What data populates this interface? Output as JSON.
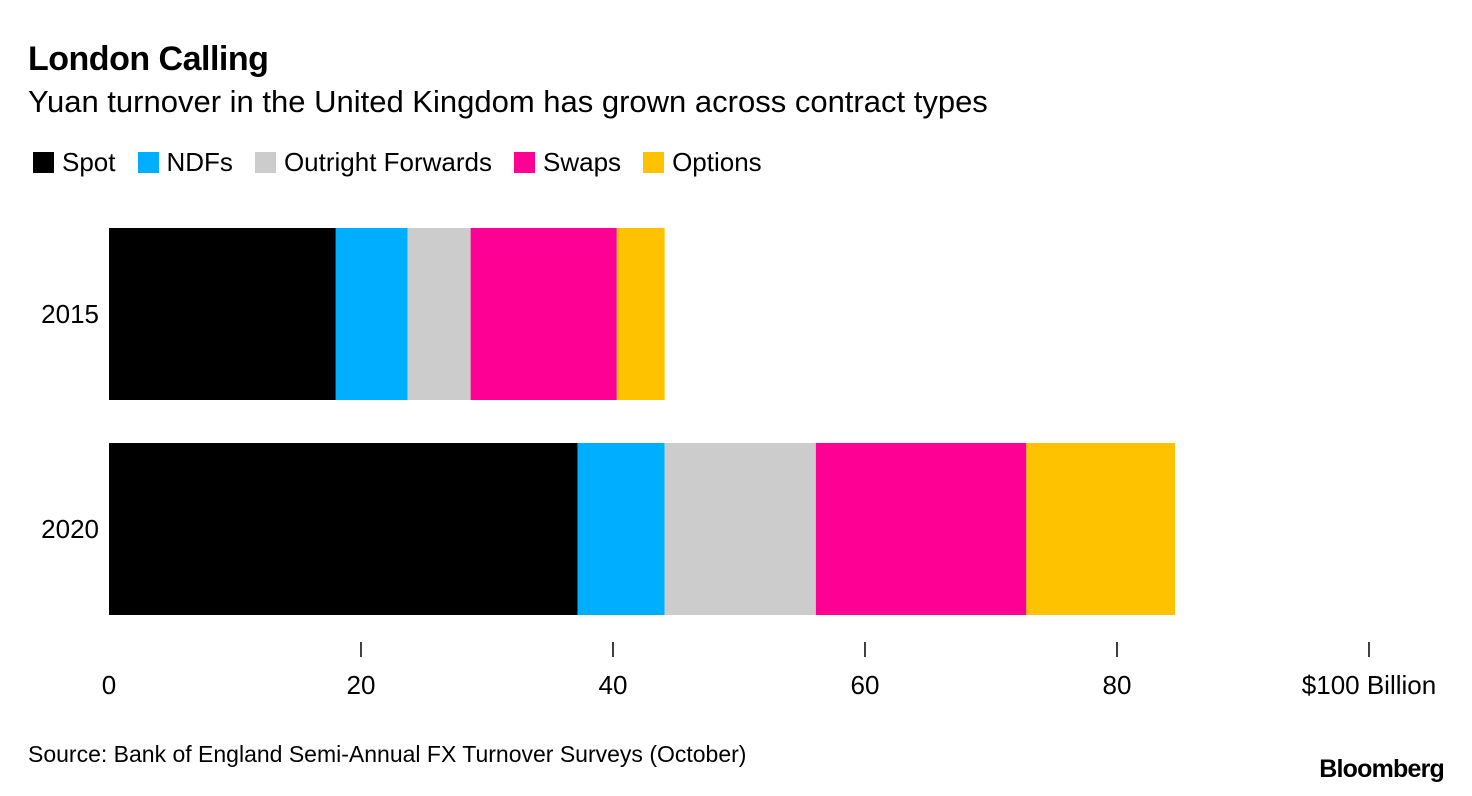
{
  "header": {
    "title": "London Calling",
    "subtitle": "Yuan turnover in the United Kingdom has grown across contract types"
  },
  "chart_data": {
    "type": "bar",
    "orientation": "horizontal",
    "stacked": true,
    "title": "London Calling",
    "subtitle": "Yuan turnover in the United Kingdom has grown across contract types",
    "categories": [
      "2015",
      "2020"
    ],
    "series": [
      {
        "name": "Spot",
        "color": "#000000",
        "values": [
          18.0,
          37.2
        ]
      },
      {
        "name": "NDFs",
        "color": "#00aeff",
        "values": [
          5.7,
          6.9
        ]
      },
      {
        "name": "Outright Forwards",
        "color": "#cccccc",
        "values": [
          5.0,
          12.0
        ]
      },
      {
        "name": "Swaps",
        "color": "#ff0095",
        "values": [
          11.6,
          16.7
        ]
      },
      {
        "name": "Options",
        "color": "#ffc200",
        "values": [
          3.8,
          11.8
        ]
      }
    ],
    "xlim": [
      0,
      100
    ],
    "xticks": [
      0,
      20,
      40,
      60,
      80,
      100
    ],
    "xtick_labels": [
      "0",
      "20",
      "40",
      "60",
      "80",
      "$100 Billion"
    ],
    "xlabel": "",
    "ylabel": "",
    "grid": false,
    "legend_position": "top-left"
  },
  "footer": {
    "source": "Source: Bank of England Semi-Annual FX Turnover Surveys (October)",
    "brand": "Bloomberg"
  }
}
